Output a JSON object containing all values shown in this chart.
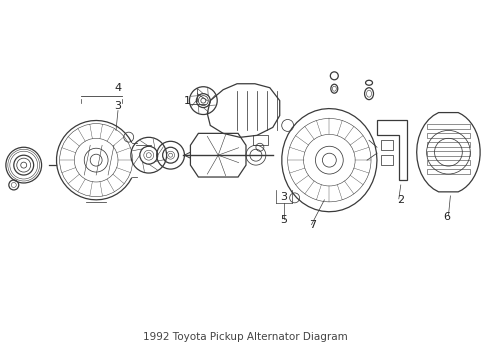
{
  "title": "1992 Toyota Pickup Alternator Diagram",
  "background_color": "#ffffff",
  "line_color": "#3a3a3a",
  "label_color": "#222222",
  "fig_width": 4.9,
  "fig_height": 3.6,
  "dpi": 100,
  "image_b64": ""
}
